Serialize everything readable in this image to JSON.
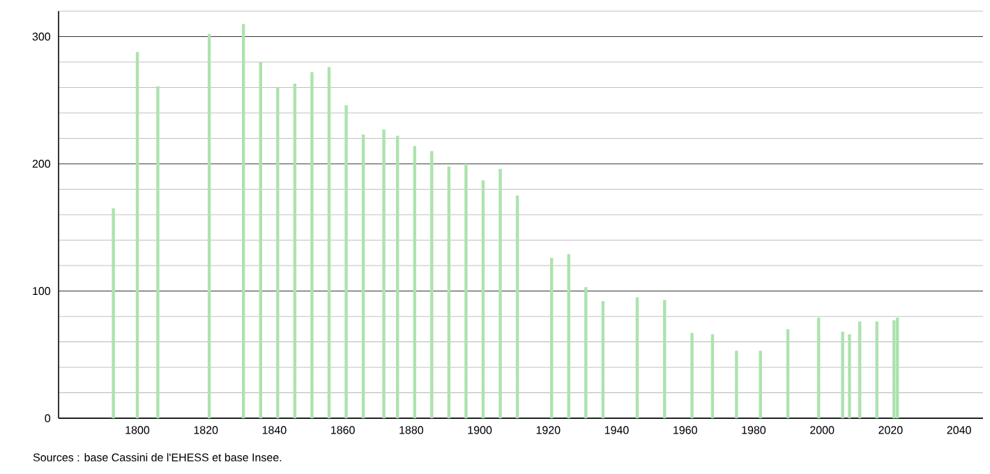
{
  "chart_data": {
    "type": "bar",
    "color": "#ade3ad",
    "x": [
      1793,
      1800,
      1806,
      1821,
      1831,
      1836,
      1841,
      1846,
      1851,
      1856,
      1861,
      1866,
      1872,
      1876,
      1881,
      1886,
      1891,
      1896,
      1901,
      1906,
      1911,
      1921,
      1926,
      1931,
      1936,
      1946,
      1954,
      1962,
      1968,
      1975,
      1982,
      1990,
      1999,
      2006,
      2008,
      2011,
      2016,
      2021,
      2022
    ],
    "values": [
      165,
      288,
      261,
      302,
      310,
      280,
      260,
      263,
      272,
      276,
      246,
      223,
      227,
      222,
      214,
      210,
      198,
      200,
      187,
      196,
      175,
      126,
      129,
      103,
      92,
      95,
      93,
      67,
      66,
      53,
      53,
      70,
      79,
      68,
      66,
      76,
      76,
      77,
      79
    ],
    "xlim": [
      1777,
      2047
    ],
    "xticks": [
      1800,
      1820,
      1840,
      1860,
      1880,
      1900,
      1920,
      1940,
      1960,
      1980,
      2000,
      2020,
      2040
    ],
    "ylim": [
      0,
      320
    ],
    "yticks": [
      0,
      {
        "value": 20,
        "label": null
      },
      {
        "value": 40,
        "label": null
      },
      {
        "value": 60,
        "label": null
      },
      {
        "value": 80,
        "label": null
      },
      100,
      {
        "value": 120,
        "label": null
      },
      {
        "value": 140,
        "label": null
      },
      {
        "value": 160,
        "label": null
      },
      {
        "value": 180,
        "label": null
      },
      200,
      {
        "value": 220,
        "label": null
      },
      {
        "value": 240,
        "label": null
      },
      {
        "value": 260,
        "label": null
      },
      {
        "value": 280,
        "label": null
      },
      300,
      {
        "value": 320,
        "label": null
      }
    ],
    "grid": "y",
    "annotations": [
      "Sources : base Cassini de l'EHESS et base Insee."
    ]
  }
}
